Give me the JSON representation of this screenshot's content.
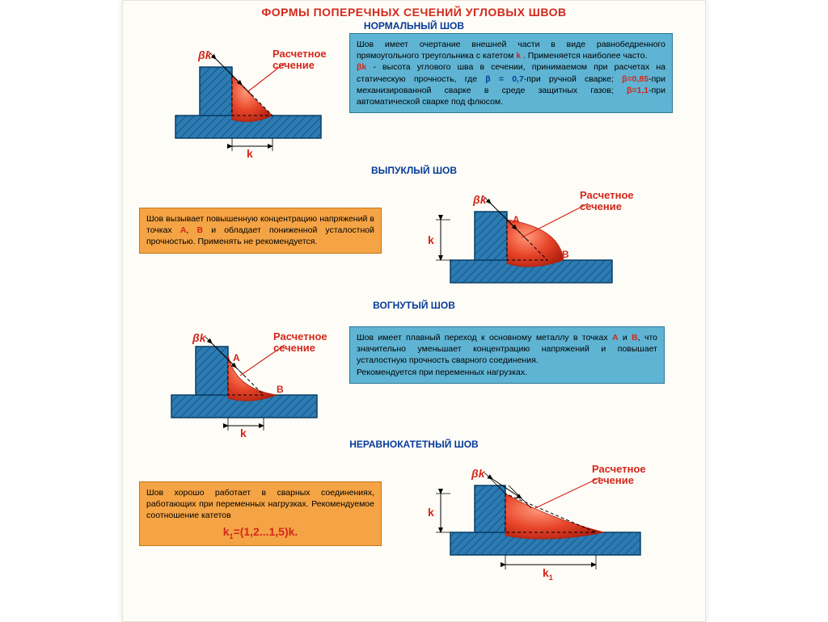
{
  "colors": {
    "title": "#d3281c",
    "subtitle": "#063b9a",
    "red": "#d3281c",
    "blue": "#063b9a",
    "tealFill": "#5fb4d4",
    "tealBorder": "#2a7796",
    "orangeFill": "#f5a445",
    "orangeBorder": "#c4761a",
    "metalFill": "#2c7bb3",
    "metalStroke": "#0a3e66",
    "weldFill": "#e8452a",
    "weldDark": "#b02010",
    "hatch": "#0a3e66",
    "pageBg": "#fefcf6"
  },
  "mainTitle": "ФОРМЫ ПОПЕРЕЧНЫХ СЕЧЕНИЙ УГЛОВЫХ ШВОВ",
  "sections": [
    {
      "title": "НОРМАЛЬНЫЙ ШОВ",
      "diagram": {
        "type": "normal",
        "labels": {
          "bk": "βk",
          "k": "k",
          "callout": "Расчетное\nсечение"
        }
      },
      "box": {
        "style": "teal",
        "lines": [
          {
            "t": "    Шов имеет очертание внешней части в виде равнобедренного прямоугольного треугольника с катетом "
          },
          {
            "t": "k",
            "c": "red"
          },
          {
            "t": " . Применяется наиболее часто.\n    "
          },
          {
            "t": "βk",
            "c": "red"
          },
          {
            "t": " - высота углового шва в сечении, принимаемом при расчетах на статическую прочность, где "
          },
          {
            "t": "β = 0,7",
            "c": "blue"
          },
          {
            "t": "-при ручной сварке; "
          },
          {
            "t": "β=0,85",
            "c": "red"
          },
          {
            "t": "-при механизированной сварке в среде защитных газов; "
          },
          {
            "t": "β=1,1",
            "c": "red"
          },
          {
            "t": "-при автоматической сварке под флюсом."
          }
        ]
      }
    },
    {
      "title": "ВЫПУКЛЫЙ ШОВ",
      "diagram": {
        "type": "convex",
        "labels": {
          "bk": "βk",
          "k": "k",
          "A": "А",
          "B": "В",
          "callout": "Расчетное\nсечение"
        }
      },
      "box": {
        "style": "orange",
        "lines": [
          {
            "t": "    Шов вызывает повышенную концентрацию напряжений в точках "
          },
          {
            "t": "А",
            "c": "red"
          },
          {
            "t": ", "
          },
          {
            "t": "В",
            "c": "red"
          },
          {
            "t": " и обладает пониженной усталостной прочностью. Применять не рекомендуется."
          }
        ]
      }
    },
    {
      "title": "ВОГНУТЫЙ ШОВ",
      "diagram": {
        "type": "concave",
        "labels": {
          "bk": "βk",
          "k": "k",
          "A": "А",
          "B": "В",
          "callout": "Расчетное\nсечение"
        }
      },
      "box": {
        "style": "teal",
        "lines": [
          {
            "t": "    Шов имеет плавный переход к основному металлу в точках "
          },
          {
            "t": "А",
            "c": "red"
          },
          {
            "t": " и "
          },
          {
            "t": "В",
            "c": "red"
          },
          {
            "t": ", что значительно уменьшает концентрацию напряжений и повышает усталостную прочность сварного соединения.\n    Рекомендуется при переменных нагрузках."
          }
        ]
      }
    },
    {
      "title": "НЕРАВНОКАТЕТНЫЙ ШОВ",
      "diagram": {
        "type": "unequal",
        "labels": {
          "bk": "βk",
          "k": "k",
          "k1": "k1",
          "callout": "Расчетное\nсечение"
        }
      },
      "box": {
        "style": "orange",
        "lines": [
          {
            "t": "    Шов хорошо работает в сварных соединениях, работающих при переменных нагрузках. Рекомендуемое соотношение катетов\n"
          }
        ],
        "formula": "k₁=(1,2...1,5)k."
      }
    }
  ]
}
